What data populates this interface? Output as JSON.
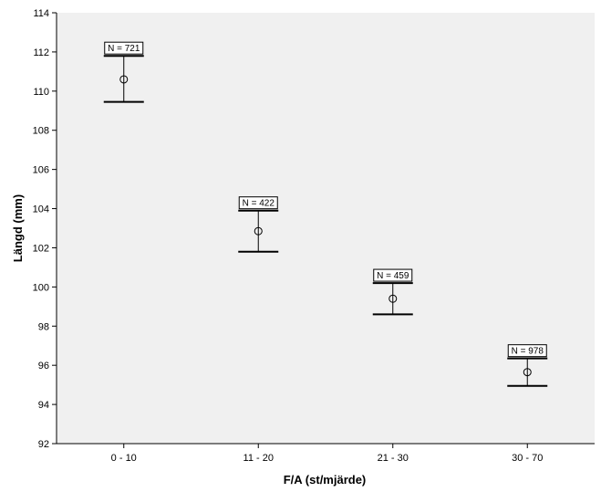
{
  "chart_data": {
    "type": "errorbar",
    "xlabel": "F/A (st/mjärde)",
    "ylabel": "Längd (mm)",
    "ylim": [
      92,
      114
    ],
    "yticks": [
      92,
      94,
      96,
      98,
      100,
      102,
      104,
      106,
      108,
      110,
      112,
      114
    ],
    "grid": false,
    "categories": [
      "0 - 10",
      "11 - 20",
      "21 - 30",
      "30 - 70"
    ],
    "points": [
      {
        "category": "0 - 10",
        "mean": 110.6,
        "lower": 109.45,
        "upper": 111.8,
        "n_label": "N = 721"
      },
      {
        "category": "11 - 20",
        "mean": 102.85,
        "lower": 101.8,
        "upper": 103.9,
        "n_label": "N = 422"
      },
      {
        "category": "21 - 30",
        "mean": 99.4,
        "lower": 98.6,
        "upper": 100.2,
        "n_label": "N = 459"
      },
      {
        "category": "30 - 70",
        "mean": 95.65,
        "lower": 94.95,
        "upper": 96.35,
        "n_label": "N = 978"
      }
    ]
  },
  "colors": {
    "plot_background": "#f0f0f0",
    "axis": "#000000",
    "marks": "#000000"
  }
}
